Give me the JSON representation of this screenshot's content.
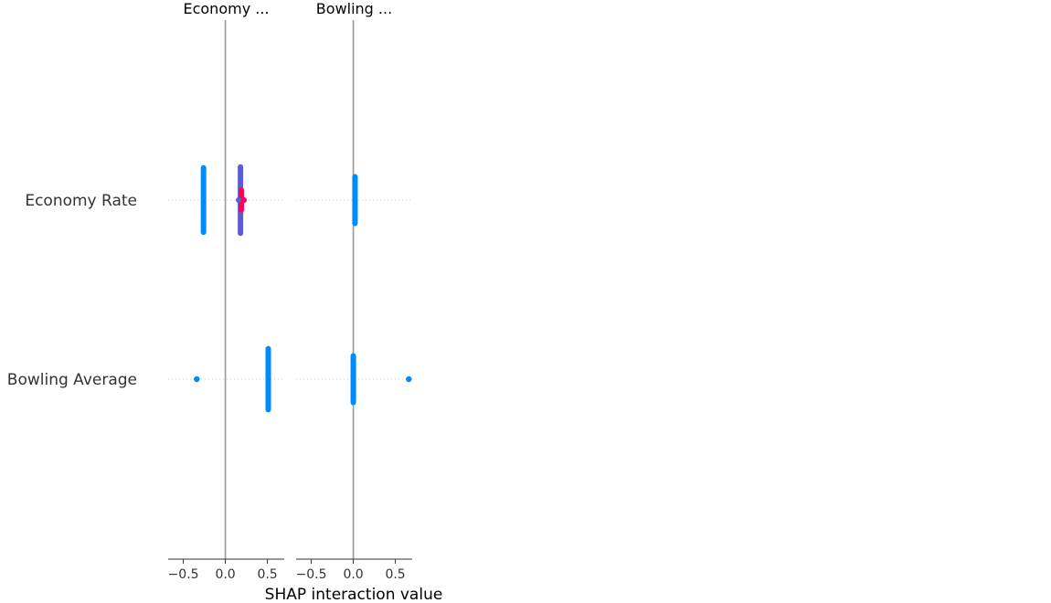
{
  "chart_data": {
    "type": "scatter",
    "xlabel": "SHAP interaction value",
    "panel_titles": [
      "Economy ...",
      "Bowling ..."
    ],
    "features": [
      "Economy Rate",
      "Bowling Average"
    ],
    "xticks": [
      -0.5,
      0.0,
      0.5
    ],
    "xtick_labels": [
      "−0.5",
      "0.0",
      "0.5"
    ],
    "xlim": [
      -0.68,
      0.7
    ],
    "colors": {
      "low": "#008bfb",
      "mid": "#5b5bd6",
      "high": "#ff0052"
    },
    "panels": [
      {
        "title": "Economy ...",
        "rows": [
          {
            "feature": "Economy Rate",
            "clusters": [
              {
                "x": -0.26,
                "spread": 0.72,
                "color": "low"
              },
              {
                "x": 0.18,
                "spread": 0.74,
                "color": "mid"
              },
              {
                "x": 0.19,
                "spread": 0.22,
                "color": "high"
              }
            ],
            "points": [
              {
                "x": 0.16,
                "color": "mid"
              },
              {
                "x": 0.22,
                "color": "high"
              }
            ]
          },
          {
            "feature": "Bowling Average",
            "clusters": [
              {
                "x": 0.51,
                "spread": 0.68,
                "color": "low"
              }
            ],
            "points": [
              {
                "x": -0.34,
                "color": "low"
              }
            ]
          }
        ]
      },
      {
        "title": "Bowling ...",
        "rows": [
          {
            "feature": "Economy Rate",
            "clusters": [
              {
                "x": 0.02,
                "spread": 0.52,
                "color": "low"
              }
            ],
            "points": []
          },
          {
            "feature": "Bowling Average",
            "clusters": [
              {
                "x": 0.0,
                "spread": 0.52,
                "color": "low"
              }
            ],
            "points": [
              {
                "x": 0.66,
                "color": "low"
              }
            ]
          }
        ]
      }
    ]
  }
}
